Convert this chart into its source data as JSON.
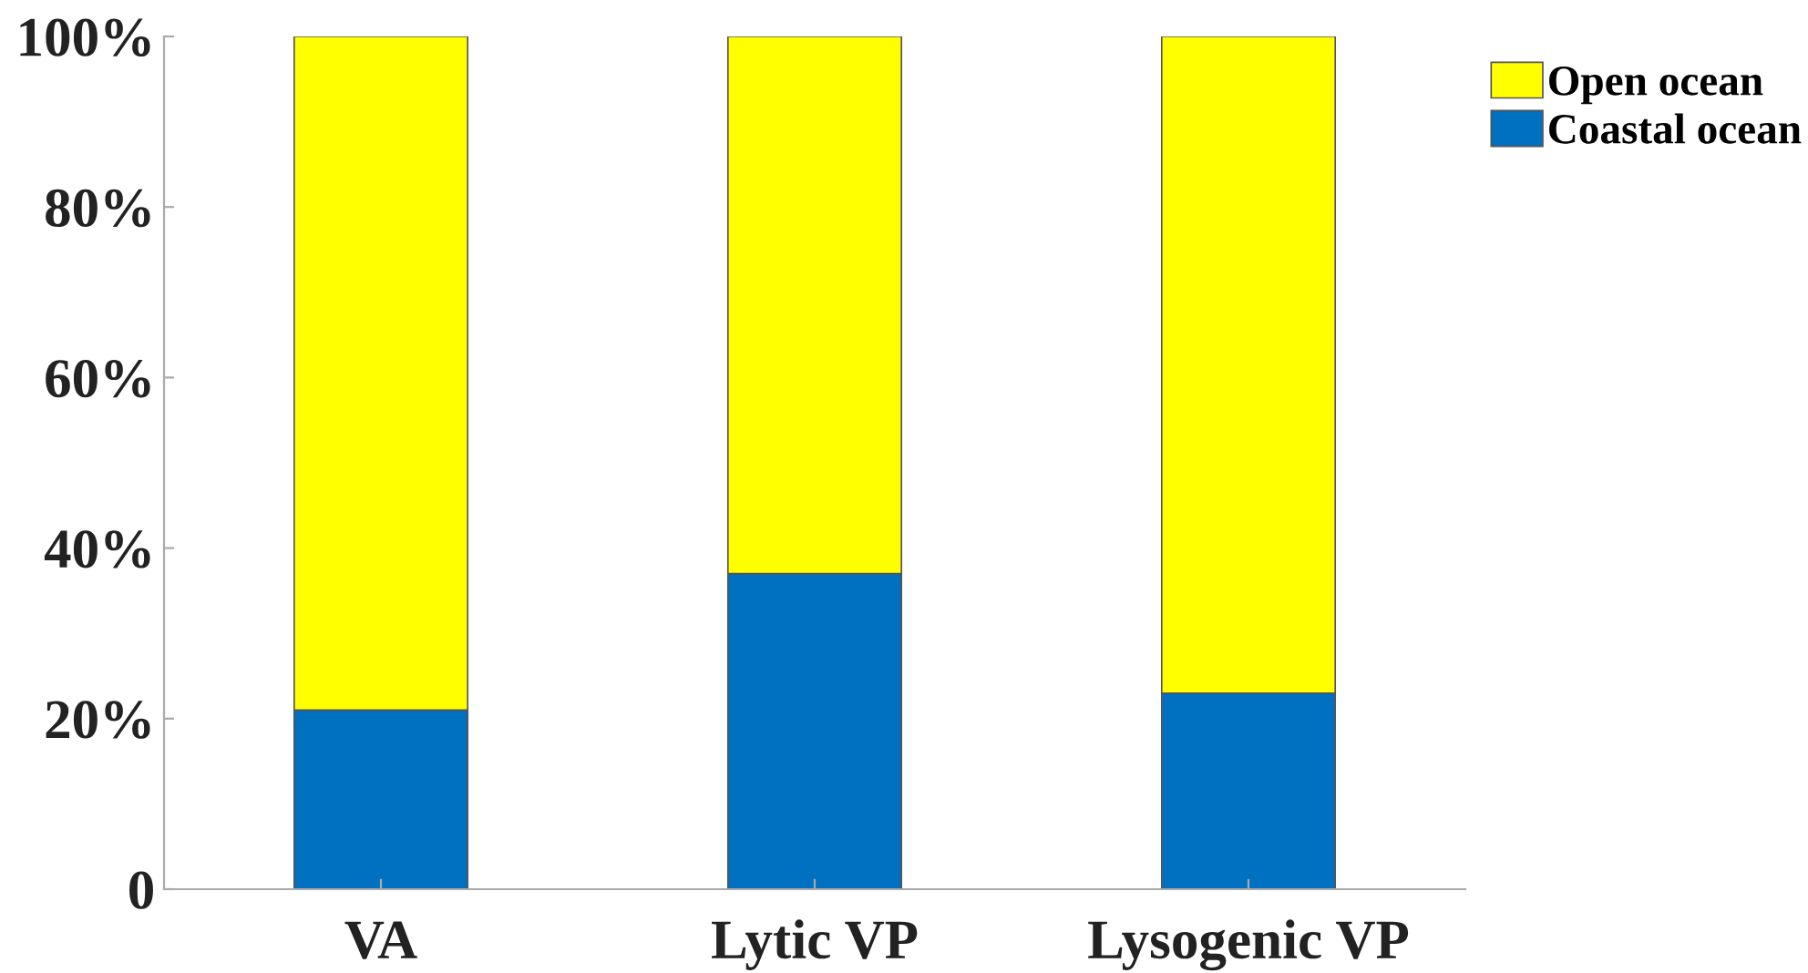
{
  "chart_data": {
    "type": "bar",
    "stacked": true,
    "categories": [
      "VA",
      "Lytic VP",
      "Lysogenic VP"
    ],
    "series": [
      {
        "name": "Coastal ocean",
        "color": "#0070c0",
        "values": [
          21,
          37,
          23
        ]
      },
      {
        "name": "Open ocean",
        "color": "#ffff00",
        "values": [
          79,
          63,
          77
        ]
      }
    ],
    "ylim": [
      0,
      100
    ],
    "yticks": [
      {
        "value": 0,
        "label": "0"
      },
      {
        "value": 20,
        "label": "20%"
      },
      {
        "value": 40,
        "label": "40%"
      },
      {
        "value": 60,
        "label": "60%"
      },
      {
        "value": 80,
        "label": "80%"
      },
      {
        "value": 100,
        "label": "100%"
      }
    ],
    "legend": "top right",
    "grid": false
  }
}
